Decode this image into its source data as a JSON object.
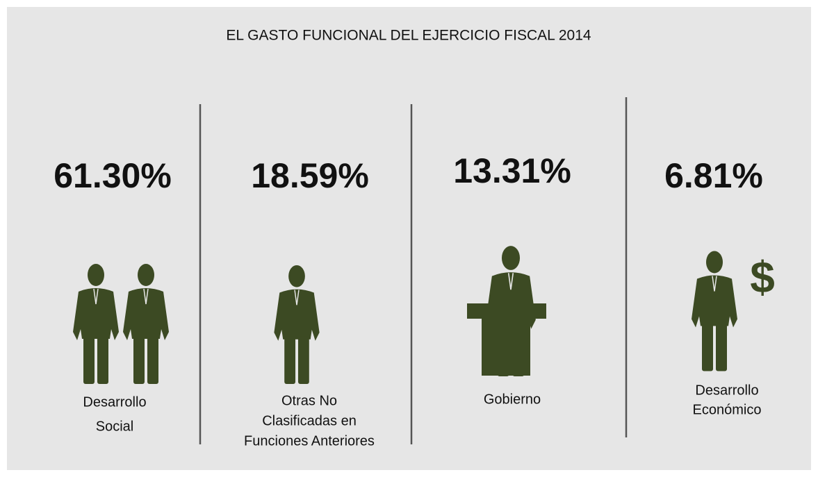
{
  "title": "EL GASTO FUNCIONAL DEL EJERCICIO FISCAL 2014",
  "panels": [
    {
      "percent": "61.30%",
      "label": [
        "Desarrollo",
        "Social"
      ]
    },
    {
      "percent": "18.59%",
      "label": [
        "Otras No",
        "Clasificadas en",
        "Funciones Anteriores"
      ]
    },
    {
      "percent": "13.31%",
      "label": [
        "Gobierno"
      ]
    },
    {
      "percent": "6.81%",
      "label": [
        "Desarrollo",
        "Económico"
      ],
      "icon_text": "$"
    }
  ]
}
